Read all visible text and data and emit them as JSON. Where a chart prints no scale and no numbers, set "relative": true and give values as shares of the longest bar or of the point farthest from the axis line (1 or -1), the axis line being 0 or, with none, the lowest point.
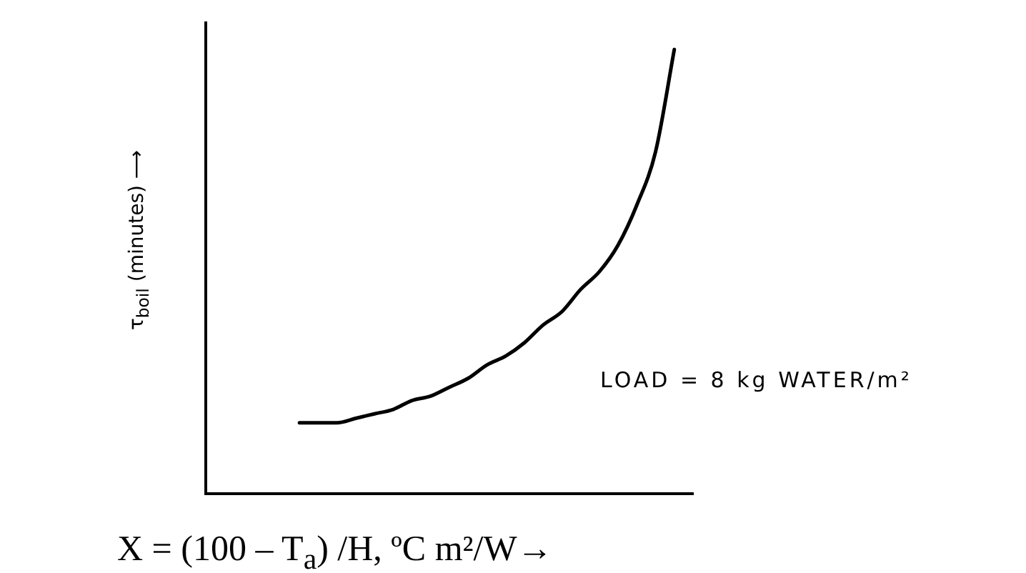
{
  "chart_data": {
    "type": "line",
    "relative": true,
    "xlabel": "X = (100 – T$_{a}$) /H, ºC m²/W→",
    "ylabel": "τ$_{boil}$ (minutes) ⟶",
    "annotations": [
      "LOAD = 8 kg WATER/m²"
    ],
    "categories": [
      null,
      null,
      null,
      null,
      null,
      null,
      null,
      null,
      null,
      null,
      null,
      null,
      null,
      null,
      null,
      null,
      null,
      null,
      null,
      null,
      null,
      null,
      null,
      null,
      null,
      null,
      null
    ],
    "series": [
      {
        "color": "#000000",
        "values": [
          null,
          null,
          null,
          null,
          null,
          0.16,
          0.16,
          0.16,
          0.17,
          0.18,
          0.19,
          0.21,
          0.22,
          0.24,
          0.26,
          0.29,
          0.31,
          0.34,
          0.38,
          0.41,
          0.46,
          0.5,
          0.56,
          0.65,
          0.77,
          1,
          null
        ]
      }
    ],
    "marker": "none",
    "line_style": "solid",
    "legend": false,
    "grid": false
  }
}
